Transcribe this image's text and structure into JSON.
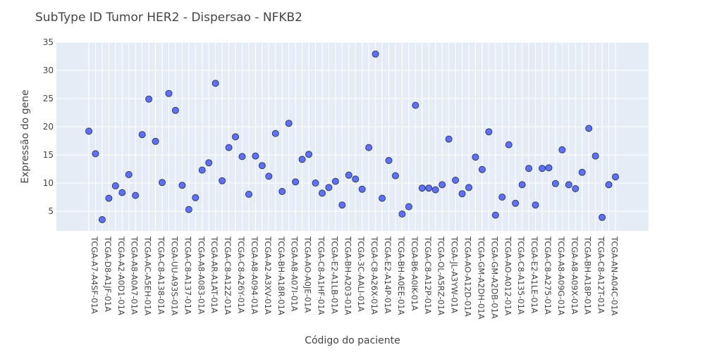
{
  "chart_data": {
    "type": "scatter",
    "title": "SubType ID Tumor HER2 - Dispersao - NFKB2",
    "xlabel": "Código do paciente",
    "ylabel": "Expressão do gene",
    "ylim": [
      1.5,
      35
    ],
    "yticks": [
      5,
      10,
      15,
      20,
      25,
      30,
      35
    ],
    "grid": true,
    "xtick_labels": [
      "TCGA-A7-A4SF-01A",
      "TCGA-D8-A1JF-01A",
      "TCGA-A2-A0D1-01A",
      "TCGA-A8-A0A7-01A",
      "TCGA-AC-A5EH-01A",
      "TCGA-C8-A138-01A",
      "TCGA-UU-A93S-01A",
      "TCGA-C8-A137-01A",
      "TCGA-A8-A083-01A",
      "TCGA-AR-A1AT-01A",
      "TCGA-C8-A12Z-01A",
      "TCGA-C8-A26Y-01A",
      "TCGA-A8-A094-01A",
      "TCGA-A2-A3XV-01A",
      "TCGA-BH-A18R-01A",
      "TCGA-A8-A07I-01A",
      "TCGA-AO-A0JE-01A",
      "TCGA-C8-A1HF-01A",
      "TCGA-E2-A1LB-01A",
      "TCGA-BH-A203-01A",
      "TCGA-3C-AALI-01A",
      "TCGA-C8-A26X-01A",
      "TCGA-E2-A14P-01A",
      "TCGA-BH-A0EE-01A",
      "TCGA-B6-A0IK-01A",
      "TCGA-C8-A12P-01A",
      "TCGA-OL-A5RZ-01A",
      "TCGA-JL-A3YW-01A",
      "TCGA-AO-A12D-01A",
      "TCGA-GM-A2DH-01A",
      "TCGA-GM-A2DB-01A",
      "TCGA-AO-A012-01A",
      "TCGA-C8-A135-01A",
      "TCGA-E2-A1LE-01A",
      "TCGA-C8-A275-01A",
      "TCGA-A8-A09G-01A",
      "TCGA-A8-A09X-01A",
      "TCGA-BH-A18P-01A",
      "TCGA-C8-A12T-01A",
      "TCGA-AN-A04C-01A"
    ],
    "series": [
      {
        "values": [
          19.2,
          15.2,
          3.5,
          7.3,
          9.5,
          8.3,
          11.5,
          7.8,
          18.6,
          24.9,
          17.4,
          10.1,
          25.9,
          22.9,
          9.6,
          5.3,
          7.4,
          12.3,
          13.6,
          27.7,
          10.4,
          16.3,
          18.2,
          14.7,
          8.0,
          14.8,
          13.1,
          11.2,
          18.8,
          8.5,
          20.6,
          10.2,
          14.2,
          15.1,
          10.0,
          8.2,
          9.2,
          10.3,
          6.1,
          11.4,
          10.7,
          8.9,
          16.3,
          32.9,
          7.3,
          14.0,
          11.3,
          4.5,
          5.8,
          23.8,
          9.1,
          9.1,
          8.8,
          9.7,
          17.8,
          10.5,
          8.1,
          9.2,
          14.6,
          12.4,
          19.1,
          4.3,
          7.5,
          16.8,
          6.4,
          9.7,
          12.6,
          6.1,
          12.6,
          12.7,
          9.9,
          15.9,
          9.7,
          9.0,
          11.9,
          19.7,
          14.8,
          3.9,
          9.7,
          11.1
        ],
        "color": "#636efa"
      }
    ]
  }
}
